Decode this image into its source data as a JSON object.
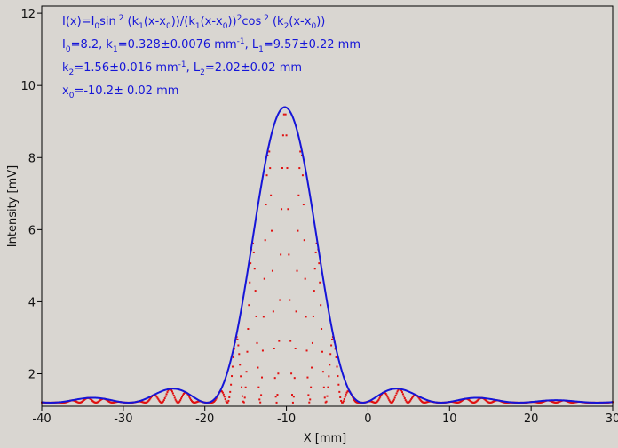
{
  "theme": {
    "background": "#d9d6d1",
    "plot_background": "#d9d6d1",
    "axis_color": "#000000",
    "fit_color": "#1515d8",
    "data_color": "#e01010",
    "text_color": "#1515d8"
  },
  "chart_data": {
    "type": "scatter",
    "title": "",
    "xlabel": "X [mm]",
    "ylabel": "Intensity [mV]",
    "xlim": [
      -40,
      30
    ],
    "ylim": [
      1.1,
      12.2
    ],
    "x_ticks": [
      -40,
      -30,
      -20,
      -10,
      0,
      10,
      20,
      30
    ],
    "y_ticks": [
      2,
      4,
      6,
      8,
      10,
      12
    ],
    "grid": false,
    "fit_params": {
      "I0": 8.2,
      "k1": 0.328,
      "L1": 9.57,
      "k2": 1.56,
      "L2": 2.02,
      "x0": -10.2,
      "offset": 1.2
    },
    "annotation": {
      "line1": {
        "a": "I(x)=I",
        "s1": "0",
        "b": "sin",
        "p1": " 2",
        "c": " (k",
        "s2": "1",
        "d": "(x-x",
        "s3": "0",
        "e": "))/(k",
        "s4": "1",
        "f": "(x-x",
        "s5": "0",
        "g": "))",
        "p2": "2",
        "h": "cos",
        "p3": " 2",
        "i": " (k",
        "s6": "2",
        "j": "(x-x",
        "s7": "0",
        "k": "))"
      },
      "line2": {
        "a": "I",
        "s1": "0",
        "b": "=8.2,  k",
        "s2": "1",
        "c": "=0.328±0.0076 mm",
        "p1": "-1",
        "d": ",   L",
        "s3": "1",
        "e": "=9.57±0.22 mm"
      },
      "line3": {
        "a": "k",
        "s1": "2",
        "b": "=1.56±0.016 mm",
        "p1": "-1",
        "c": ",   L",
        "s2": "2",
        "d": "=2.02±0.02 mm"
      },
      "line4": {
        "a": "x",
        "s1": "0",
        "b": "=-10.2±   0.02 mm"
      }
    },
    "series": [
      {
        "type": "line",
        "x_range": [
          -40,
          30
        ],
        "formula": "offset + I0 * [sin(k1(x-x0))/(k1(x-x0))]^2 envelope"
      },
      {
        "type": "scatter",
        "x_range": [
          -40,
          30
        ],
        "formula": "offset + I0 * [sin(k1(x-x0))/(k1(x-x0))]^2 * cos^2(k2(x-x0))"
      }
    ]
  }
}
